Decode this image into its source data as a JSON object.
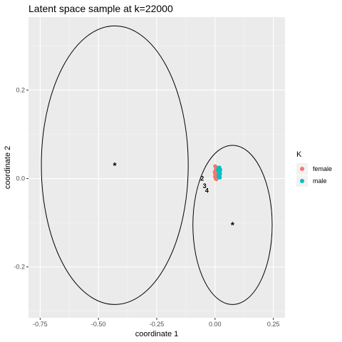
{
  "chart_data": {
    "type": "scatter",
    "title": "Latent space sample at k=22000",
    "xlabel": "coordinate 1",
    "ylabel": "coordinate 2",
    "xlim": [
      -0.8,
      0.3
    ],
    "ylim": [
      -0.315,
      0.365
    ],
    "x_ticks": [
      -0.75,
      -0.5,
      -0.25,
      0.0,
      0.25
    ],
    "x_tick_labels": [
      "-0.75",
      "-0.50",
      "-0.25",
      "0.00",
      "0.25"
    ],
    "y_ticks": [
      -0.2,
      0.0,
      0.2
    ],
    "y_tick_labels": [
      "-0.2",
      "0.0",
      "0.2"
    ],
    "grid": true,
    "legend_title": "K",
    "legend_position": "right",
    "series": [
      {
        "name": "female",
        "color": "#F8766D",
        "points": [
          [
            0.0,
            0.028
          ],
          [
            0.003,
            0.022
          ],
          [
            0.006,
            0.018
          ],
          [
            -0.002,
            0.015
          ],
          [
            0.004,
            0.012
          ],
          [
            0.008,
            0.01
          ],
          [
            0.001,
            0.008
          ],
          [
            0.006,
            0.006
          ],
          [
            -0.001,
            0.004
          ],
          [
            0.004,
            0.002
          ],
          [
            0.009,
            0.004
          ],
          [
            0.003,
            0.02
          ],
          [
            0.007,
            0.014
          ],
          [
            0.01,
            0.008
          ],
          [
            0.002,
            0.0
          ],
          [
            0.006,
            -0.002
          ],
          [
            0.0,
            0.01
          ],
          [
            0.005,
            0.026
          ],
          [
            0.011,
            0.013
          ],
          [
            0.008,
            0.0
          ]
        ]
      },
      {
        "name": "male",
        "color": "#00BFC4",
        "points": [
          [
            0.013,
            0.024
          ],
          [
            0.017,
            0.021
          ],
          [
            0.02,
            0.018
          ],
          [
            0.015,
            0.016
          ],
          [
            0.019,
            0.013
          ],
          [
            0.022,
            0.011
          ],
          [
            0.016,
            0.01
          ],
          [
            0.02,
            0.007
          ],
          [
            0.014,
            0.006
          ],
          [
            0.018,
            0.004
          ],
          [
            0.021,
            0.015
          ],
          [
            0.012,
            0.019
          ],
          [
            0.019,
            0.025
          ],
          [
            0.023,
            0.02
          ],
          [
            0.016,
            0.003
          ],
          [
            0.021,
            0.002
          ]
        ]
      }
    ],
    "centers": [
      {
        "x": -0.43,
        "y": 0.03,
        "symbol": "*"
      },
      {
        "x": 0.075,
        "y": -0.105,
        "symbol": "*"
      }
    ],
    "ellipses": [
      {
        "cx": -0.43,
        "cy": 0.03,
        "rx": 0.315,
        "ry": 0.315
      },
      {
        "cx": 0.075,
        "cy": -0.105,
        "rx": 0.17,
        "ry": 0.18
      }
    ],
    "point_labels": [
      {
        "text": "2",
        "x": -0.055,
        "y": 0.0
      },
      {
        "text": "3",
        "x": -0.045,
        "y": -0.017
      },
      {
        "text": "4",
        "x": -0.035,
        "y": -0.027
      }
    ]
  }
}
